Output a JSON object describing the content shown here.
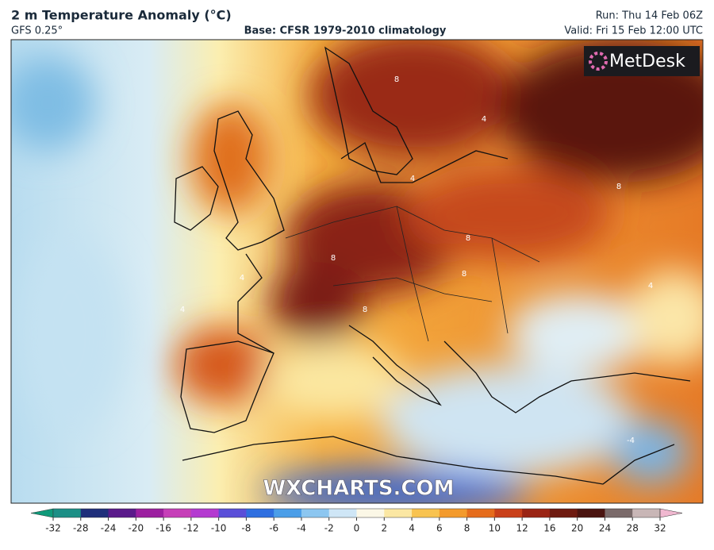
{
  "header": {
    "title": "2 m Temperature Anomaly (°C)",
    "model": "GFS 0.25°",
    "base": "Base: CFSR 1979-2010 climatology",
    "run": "Run: Thu 14 Feb 06Z",
    "valid": "Valid: Fri 15 Feb 12:00 UTC"
  },
  "logo": "MetDesk",
  "watermark": "WXCHARTS.COM",
  "contour_labels": [
    8,
    8,
    4,
    4,
    8,
    8,
    4,
    8,
    4,
    4,
    8,
    -4
  ],
  "colorbar": {
    "ticks": [
      -32,
      -28,
      -24,
      -20,
      -16,
      -12,
      -10,
      -8,
      -6,
      -4,
      -2,
      0,
      2,
      4,
      6,
      8,
      10,
      12,
      16,
      20,
      24,
      28,
      32
    ],
    "colors": [
      "#0f9a7a",
      "#1c8f86",
      "#1f2f7a",
      "#5a1a8a",
      "#9c1fa0",
      "#c63fb8",
      "#b43ad0",
      "#5a4fd8",
      "#2f6fe0",
      "#4b9ee8",
      "#8cc6f0",
      "#cfe6f6",
      "#fbf7e6",
      "#fbe7a3",
      "#f8c350",
      "#f39a2c",
      "#e56c1c",
      "#c9401a",
      "#9a2414",
      "#6e1a10",
      "#4a1410",
      "#7a6a6a",
      "#c8b6b6",
      "#f0b8d0"
    ]
  }
}
